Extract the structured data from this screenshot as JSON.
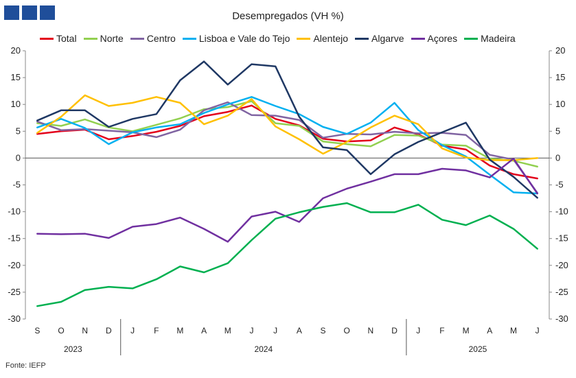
{
  "title": "Desempregados  (VH %)",
  "source": "Fonte: IEFP",
  "chart_data": {
    "type": "line",
    "title": "Desempregados  (VH %)",
    "x_labels": [
      "S",
      "O",
      "N",
      "D",
      "J",
      "F",
      "M",
      "A",
      "M",
      "J",
      "J",
      "A",
      "S",
      "O",
      "N",
      "D",
      "J",
      "F",
      "M",
      "A",
      "M",
      "J"
    ],
    "years": [
      {
        "label": "2023",
        "start": 0,
        "end": 3
      },
      {
        "label": "2024",
        "start": 4,
        "end": 15
      },
      {
        "label": "2025",
        "start": 16,
        "end": 21
      }
    ],
    "ylim": [
      -30,
      20
    ],
    "yticks": [
      -30,
      -25,
      -20,
      -15,
      -10,
      -5,
      0,
      5,
      10,
      15,
      20
    ],
    "grid": false,
    "legend_position": "top",
    "series": [
      {
        "name": "Total",
        "color": "#e3001b",
        "values": [
          4.5,
          5.0,
          5.3,
          3.5,
          4.1,
          4.9,
          6.0,
          7.8,
          8.6,
          9.8,
          7.3,
          6.1,
          3.6,
          3.1,
          3.3,
          5.7,
          4.4,
          2.3,
          1.6,
          -1.4,
          -3.0,
          -3.8
        ]
      },
      {
        "name": "Norte",
        "color": "#92d050",
        "values": [
          6.5,
          6.0,
          7.2,
          5.7,
          5.0,
          6.2,
          7.4,
          9.1,
          9.5,
          10.6,
          6.5,
          6.0,
          3.1,
          2.6,
          2.2,
          4.3,
          4.2,
          2.5,
          2.3,
          -0.1,
          -0.5,
          -1.6
        ]
      },
      {
        "name": "Centro",
        "color": "#8064a2",
        "values": [
          6.8,
          5.2,
          5.4,
          5.1,
          4.8,
          3.9,
          5.3,
          8.9,
          10.4,
          8.0,
          7.9,
          7.1,
          3.8,
          4.5,
          4.4,
          4.9,
          4.6,
          4.7,
          4.3,
          0.6,
          -0.3,
          -6.5
        ]
      },
      {
        "name": "Lisboa e Vale do Tejo",
        "color": "#00b0f0",
        "values": [
          5.7,
          7.3,
          5.6,
          2.6,
          4.8,
          5.7,
          6.3,
          8.4,
          10.0,
          11.4,
          9.7,
          8.2,
          5.8,
          4.5,
          6.6,
          10.3,
          5.2,
          2.4,
          0.3,
          -3.1,
          -6.4,
          -6.6
        ]
      },
      {
        "name": "Alentejo",
        "color": "#ffc000",
        "values": [
          4.7,
          7.7,
          11.7,
          9.7,
          10.3,
          11.4,
          10.3,
          6.3,
          7.9,
          11.0,
          5.9,
          3.5,
          0.8,
          3.0,
          5.7,
          7.9,
          6.3,
          1.8,
          0.1,
          -0.4,
          -0.4,
          0.0
        ]
      },
      {
        "name": "Algarve",
        "color": "#1f3864",
        "values": [
          7.0,
          8.9,
          8.9,
          5.8,
          7.3,
          8.2,
          14.5,
          18.0,
          13.7,
          17.5,
          17.1,
          7.7,
          2.0,
          1.5,
          -3.0,
          0.7,
          3.0,
          4.8,
          6.6,
          -0.3,
          -3.5,
          -7.4
        ]
      },
      {
        "name": "Açores",
        "color": "#7030a0",
        "values": [
          -14.1,
          -14.2,
          -14.1,
          -14.9,
          -12.8,
          -12.3,
          -11.1,
          -13.2,
          -15.6,
          -10.9,
          -10.0,
          -11.9,
          -7.5,
          -5.7,
          -4.4,
          -3.0,
          -3.0,
          -2.0,
          -2.3,
          -3.6,
          -0.1,
          -6.6
        ]
      },
      {
        "name": "Madeira",
        "color": "#00b050",
        "values": [
          -27.6,
          -26.8,
          -24.6,
          -24.0,
          -24.3,
          -22.6,
          -20.2,
          -21.3,
          -19.6,
          -15.3,
          -11.3,
          -10.1,
          -9.1,
          -8.4,
          -10.1,
          -10.1,
          -8.7,
          -11.5,
          -12.5,
          -10.7,
          -13.2,
          -16.9
        ]
      }
    ]
  }
}
